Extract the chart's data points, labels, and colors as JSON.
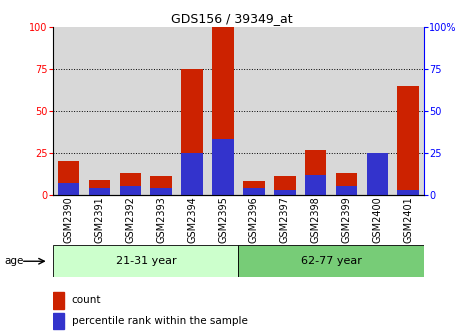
{
  "title": "GDS156 / 39349_at",
  "categories": [
    "GSM2390",
    "GSM2391",
    "GSM2392",
    "GSM2393",
    "GSM2394",
    "GSM2395",
    "GSM2396",
    "GSM2397",
    "GSM2398",
    "GSM2399",
    "GSM2400",
    "GSM2401"
  ],
  "red_values": [
    20,
    9,
    13,
    11,
    75,
    100,
    8,
    11,
    27,
    13,
    17,
    65
  ],
  "blue_values": [
    7,
    4,
    5,
    4,
    25,
    33,
    4,
    3,
    12,
    5,
    25,
    3
  ],
  "group1_label": "21-31 year",
  "group2_label": "62-77 year",
  "group1_count": 6,
  "group2_count": 6,
  "ylim": [
    0,
    100
  ],
  "yticks": [
    0,
    25,
    50,
    75,
    100
  ],
  "red_color": "#cc2200",
  "blue_color": "#3333cc",
  "col_bg": "#d8d8d8",
  "group1_bg": "#ccffcc",
  "group2_bg": "#77cc77",
  "age_label": "age",
  "legend_count": "count",
  "legend_percentile": "percentile rank within the sample",
  "title_fontsize": 9,
  "tick_fontsize": 7,
  "legend_fontsize": 7.5
}
